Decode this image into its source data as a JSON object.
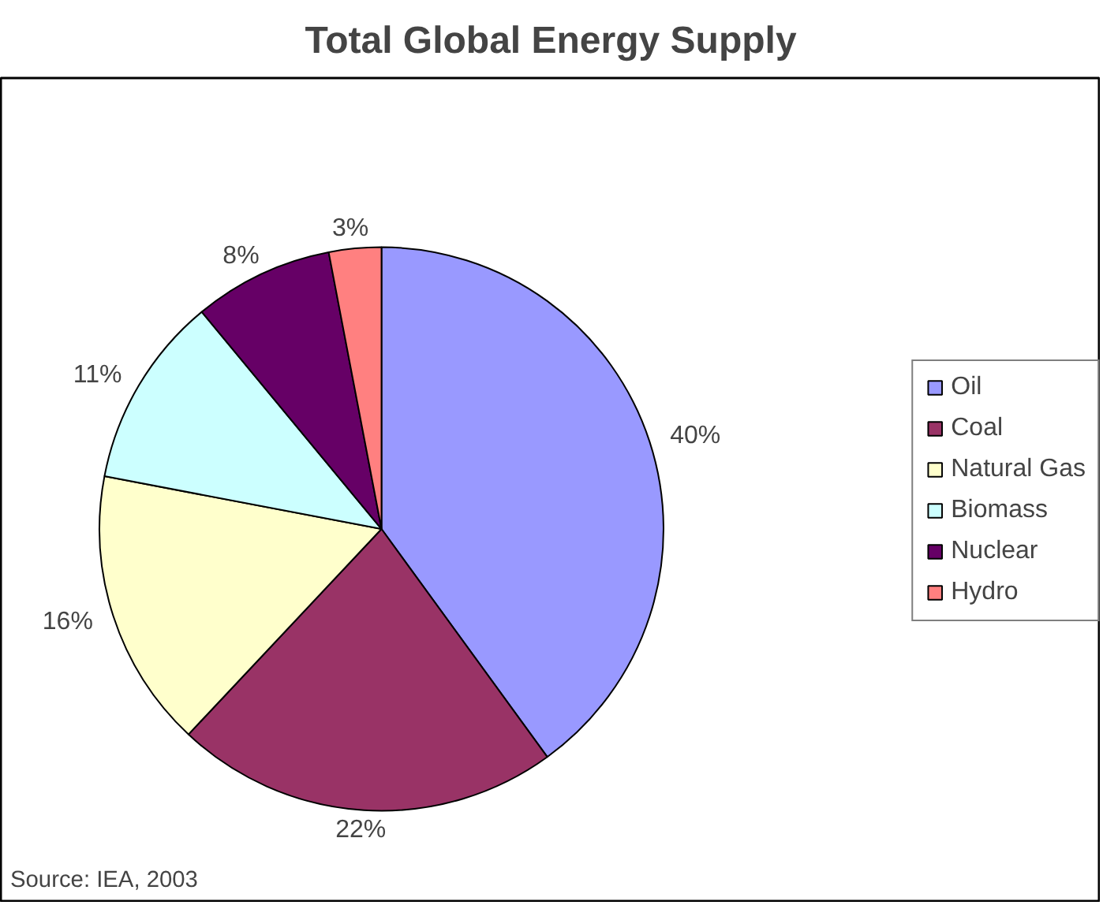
{
  "chart_data": {
    "type": "pie",
    "title": "Total Global Energy Supply",
    "categories": [
      "Oil",
      "Coal",
      "Natural Gas",
      "Biomass",
      "Nuclear",
      "Hydro"
    ],
    "values": [
      40,
      22,
      16,
      11,
      8,
      3
    ],
    "colors": [
      "#9999ff",
      "#993366",
      "#ffffcc",
      "#ccffff",
      "#660066",
      "#ff8080"
    ],
    "value_labels": [
      "40%",
      "22%",
      "16%",
      "11%",
      "8%",
      "3%"
    ],
    "legend": "right",
    "annotations": [
      "Source: IEA, 2003"
    ]
  }
}
